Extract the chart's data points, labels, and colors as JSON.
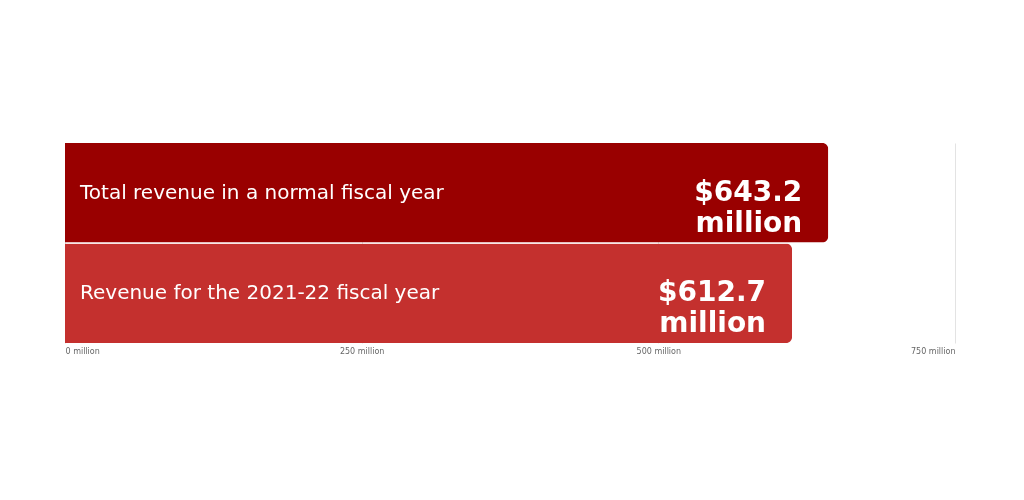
{
  "chart_data": {
    "type": "bar",
    "orientation": "horizontal",
    "categories": [
      "Total revenue in a normal fiscal year",
      "Revenue for the 2021-22 fiscal year"
    ],
    "values": [
      643.2,
      612.7
    ],
    "colors": [
      "#990000",
      "#c4302e"
    ],
    "value_labels": [
      "$643.2 million",
      "$612.7 million"
    ],
    "xlim": [
      0,
      750
    ],
    "xticks": [
      {
        "value": 0,
        "label": "0 million"
      },
      {
        "value": 250,
        "label": "250 million"
      },
      {
        "value": 500,
        "label": "500 million"
      },
      {
        "value": 750,
        "label": "750 million"
      }
    ],
    "grid": "x"
  }
}
